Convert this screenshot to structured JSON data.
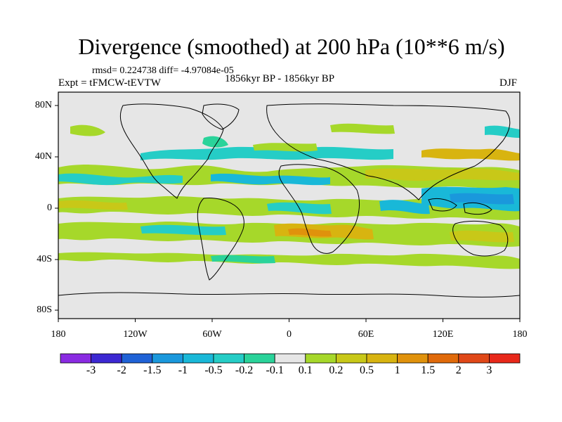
{
  "title": "Divergence (smoothed) at 200 hPa (10**6 m/s)",
  "stats": "rmsd= 0.224738 diff= -4.97084e-05",
  "experiment": "Expt = tFMCW-tEVTW",
  "period": "1856kyr BP - 1856kyr BP",
  "season": "DJF",
  "axes": {
    "y_ticks": [
      "80N",
      "40N",
      "0",
      "40S",
      "80S"
    ],
    "x_ticks": [
      "180",
      "120W",
      "60W",
      "0",
      "60E",
      "120E",
      "180"
    ]
  },
  "colorbar": {
    "labels": [
      "-3",
      "-2",
      "-1.5",
      "-1",
      "-0.5",
      "-0.2",
      "-0.1",
      "0.1",
      "0.2",
      "0.5",
      "1",
      "1.5",
      "2",
      "3"
    ],
    "colors": [
      "#8a2be2",
      "#3c28d2",
      "#1f62d6",
      "#1a98dc",
      "#19b8d8",
      "#25cdc6",
      "#2ad39a",
      "#e6e6e6",
      "#a6d82a",
      "#c8c818",
      "#d8b410",
      "#e0920c",
      "#e06a0a",
      "#e04818",
      "#e8281a"
    ]
  },
  "colors": {
    "background": "#e6e6e6",
    "coast": "#000000"
  }
}
